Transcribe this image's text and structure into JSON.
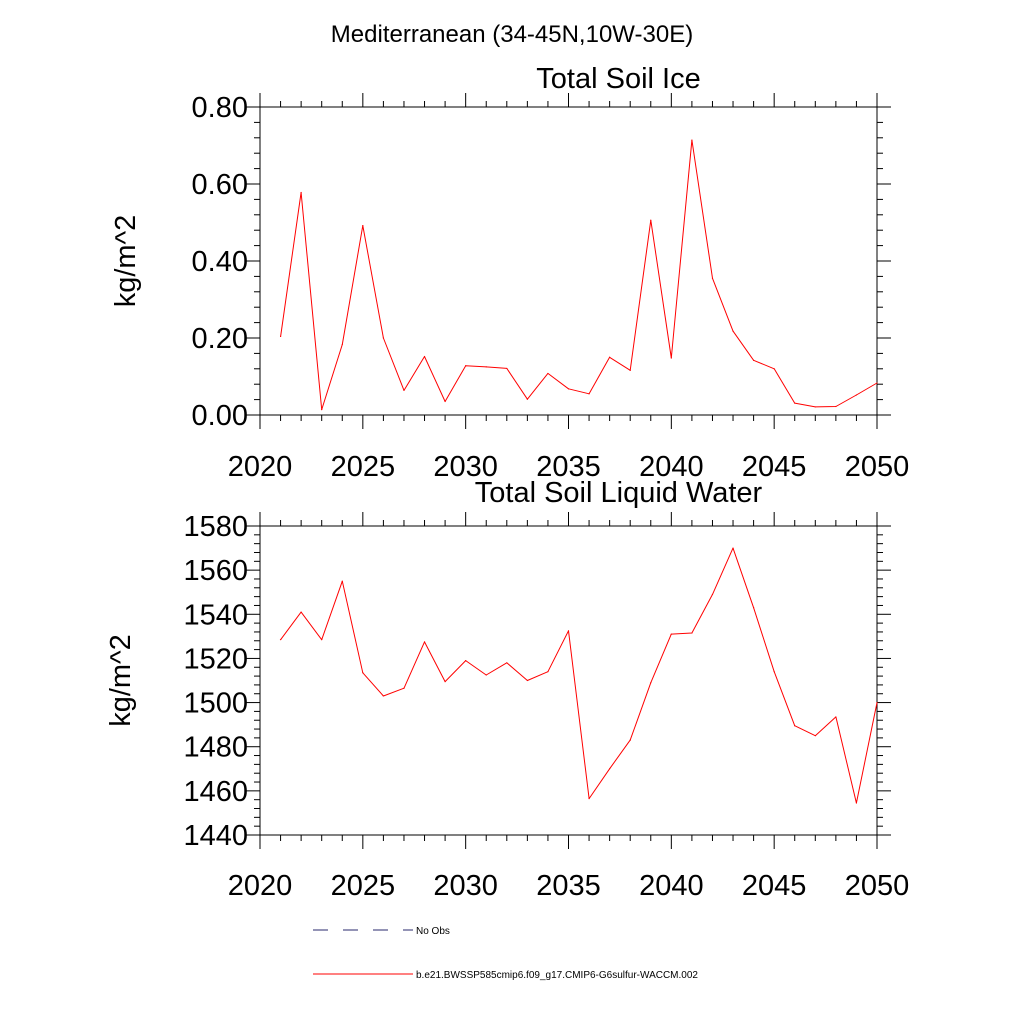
{
  "figure": {
    "suptitle": "Mediterranean (34-45N,10W-30E)"
  },
  "legend": {
    "entries": [
      {
        "label": "No Obs",
        "style": "dashed",
        "color": "#2a2a6e"
      },
      {
        "label": "b.e21.BWSSP585cmip6.f09_g17.CMIP6-G6sulfur-WACCM.002",
        "style": "solid",
        "color": "#ff0000"
      }
    ]
  },
  "chart_data": [
    {
      "type": "line",
      "title": "Total Soil Ice",
      "xlabel": "",
      "ylabel": "kg/m^2",
      "xlim": [
        2020,
        2050
      ],
      "ylim": [
        0,
        0.8
      ],
      "x_ticks": [
        "2020",
        "2025",
        "2030",
        "2035",
        "2040",
        "2045",
        "2050"
      ],
      "y_ticks": [
        "0.00",
        "0.20",
        "0.40",
        "0.60",
        "0.80"
      ],
      "grid": false,
      "series": [
        {
          "color": "#ff0000",
          "x": [
            2021,
            2022,
            2023,
            2024,
            2025,
            2026,
            2027,
            2028,
            2029,
            2030,
            2031,
            2032,
            2033,
            2034,
            2035,
            2036,
            2037,
            2038,
            2039,
            2040,
            2041,
            2042,
            2043,
            2044,
            2045,
            2046,
            2047,
            2048,
            2049,
            2050
          ],
          "values": [
            0.204,
            0.578,
            0.014,
            0.183,
            0.492,
            0.2,
            0.064,
            0.152,
            0.035,
            0.128,
            0.125,
            0.121,
            0.041,
            0.108,
            0.068,
            0.055,
            0.15,
            0.116,
            0.506,
            0.148,
            0.714,
            0.355,
            0.218,
            0.142,
            0.12,
            0.031,
            0.021,
            0.022,
            0.052,
            0.083
          ]
        }
      ]
    },
    {
      "type": "line",
      "title": "Total Soil Liquid Water",
      "xlabel": "",
      "ylabel": "kg/m^2",
      "xlim": [
        2020,
        2050
      ],
      "ylim": [
        1440,
        1580
      ],
      "x_ticks": [
        "2020",
        "2025",
        "2030",
        "2035",
        "2040",
        "2045",
        "2050"
      ],
      "y_ticks": [
        "1440",
        "1460",
        "1480",
        "1500",
        "1520",
        "1540",
        "1560",
        "1580"
      ],
      "grid": false,
      "series": [
        {
          "color": "#ff0000",
          "x": [
            2021,
            2022,
            2023,
            2024,
            2025,
            2026,
            2027,
            2028,
            2029,
            2030,
            2031,
            2032,
            2033,
            2034,
            2035,
            2036,
            2037,
            2038,
            2039,
            2040,
            2041,
            2042,
            2043,
            2044,
            2045,
            2046,
            2047,
            2048,
            2049,
            2050
          ],
          "values": [
            1528.5,
            1541,
            1528.5,
            1555,
            1513.5,
            1503,
            1506.5,
            1527.5,
            1509.5,
            1519,
            1512.5,
            1518,
            1510,
            1514,
            1532.5,
            1456.5,
            1470,
            1483,
            1509,
            1531,
            1531.5,
            1549,
            1570,
            1543,
            1514,
            1489.5,
            1485,
            1493.5,
            1454.5,
            1500
          ]
        }
      ]
    }
  ]
}
